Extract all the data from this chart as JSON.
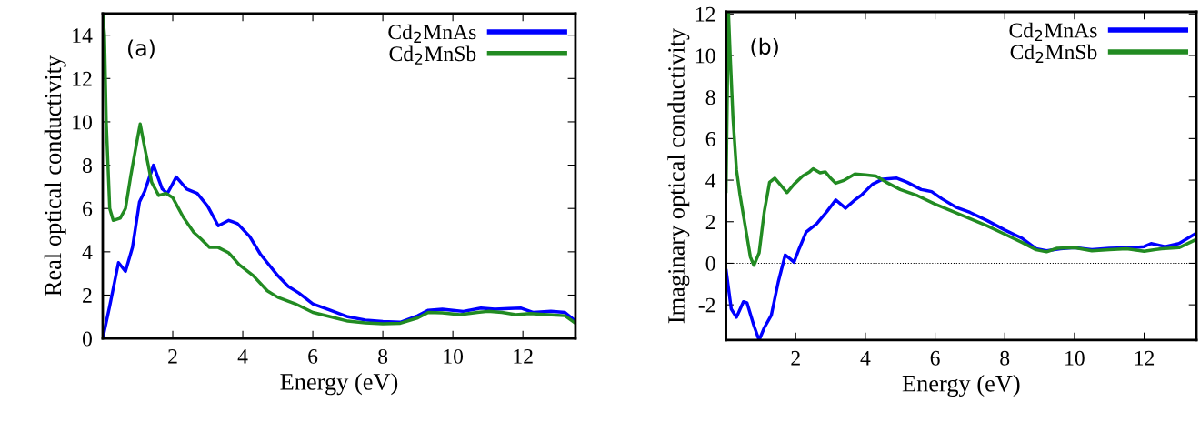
{
  "chart_data": [
    {
      "type": "line",
      "xlabel": "Energy (eV)",
      "ylabel": "Real optical conductivity",
      "annotations": [
        "(a)"
      ],
      "xlim": [
        0,
        13.5
      ],
      "ylim": [
        0,
        15
      ],
      "xticks": [
        2,
        4,
        6,
        8,
        10,
        12
      ],
      "yticks": [
        0,
        2,
        4,
        6,
        8,
        10,
        12,
        14
      ],
      "grid": false,
      "legend": "top right",
      "marker": "none",
      "line_style": "solid",
      "series": [
        {
          "name": "Cd$_{2}$MnAs",
          "color": "#0000ff",
          "x": [
            0,
            0.2,
            0.45,
            0.65,
            0.85,
            1.05,
            1.2,
            1.45,
            1.7,
            1.85,
            2.1,
            2.4,
            2.7,
            3.0,
            3.3,
            3.6,
            3.85,
            4.2,
            4.5,
            5.0,
            5.3,
            5.6,
            6.0,
            6.5,
            7.0,
            7.5,
            8.0,
            8.5,
            9.0,
            9.3,
            9.7,
            10.0,
            10.3,
            10.8,
            11.2,
            11.6,
            11.95,
            12.3,
            12.8,
            13.2,
            13.5
          ],
          "values": [
            0,
            1.5,
            3.5,
            3.1,
            4.2,
            6.3,
            6.8,
            8.0,
            6.9,
            6.7,
            7.45,
            6.9,
            6.7,
            6.1,
            5.2,
            5.45,
            5.3,
            4.7,
            3.9,
            2.9,
            2.4,
            2.1,
            1.6,
            1.3,
            1.0,
            0.85,
            0.78,
            0.75,
            1.05,
            1.3,
            1.35,
            1.3,
            1.25,
            1.4,
            1.35,
            1.38,
            1.4,
            1.2,
            1.25,
            1.2,
            0.8
          ]
        },
        {
          "name": "Cd$_{2}$MnSb",
          "color": "#228b22",
          "x": [
            0,
            0.05,
            0.1,
            0.2,
            0.3,
            0.5,
            0.65,
            0.8,
            1.0,
            1.07,
            1.2,
            1.4,
            1.6,
            1.8,
            2.0,
            2.3,
            2.6,
            2.8,
            3.05,
            3.3,
            3.6,
            3.9,
            4.3,
            4.7,
            5.0,
            5.5,
            6.0,
            6.5,
            7.0,
            7.5,
            8.0,
            8.5,
            9.0,
            9.3,
            9.7,
            10.2,
            10.7,
            11.0,
            11.4,
            11.8,
            12.2,
            12.7,
            13.2,
            13.5
          ],
          "values": [
            15,
            14,
            10,
            6,
            5.45,
            5.55,
            6,
            7.5,
            9.3,
            9.9,
            8.8,
            7.2,
            6.6,
            6.7,
            6.5,
            5.6,
            4.9,
            4.6,
            4.2,
            4.2,
            3.95,
            3.4,
            2.9,
            2.2,
            1.9,
            1.6,
            1.2,
            1.0,
            0.8,
            0.72,
            0.68,
            0.7,
            0.95,
            1.2,
            1.18,
            1.1,
            1.2,
            1.25,
            1.2,
            1.1,
            1.15,
            1.1,
            1.05,
            0.7
          ]
        }
      ]
    },
    {
      "type": "line",
      "xlabel": "Energy (eV)",
      "ylabel": "Imaginary optical conductivity",
      "annotations": [
        "(b)"
      ],
      "xlim": [
        0,
        13.5
      ],
      "ylim": [
        -3.7,
        12.1
      ],
      "xticks": [
        2,
        4,
        6,
        8,
        10,
        12
      ],
      "yticks": [
        -2,
        0,
        2,
        4,
        6,
        8,
        10,
        12
      ],
      "grid": false,
      "legend": "top right",
      "marker": "none",
      "line_style": "solid",
      "ref_lines": [
        {
          "axis": "y",
          "value": 0,
          "label": null,
          "color": "#000000",
          "line_style": "dotted"
        }
      ],
      "series": [
        {
          "name": "Cd$_{2}$MnAs",
          "color": "#0000ff",
          "x": [
            0,
            0.15,
            0.3,
            0.5,
            0.6,
            0.8,
            0.95,
            1.1,
            1.3,
            1.5,
            1.7,
            1.85,
            1.95,
            2.1,
            2.3,
            2.6,
            2.9,
            3.15,
            3.43,
            3.7,
            3.9,
            4.2,
            4.5,
            4.9,
            5.2,
            5.6,
            5.9,
            6.2,
            6.6,
            7.0,
            7.5,
            8.0,
            8.5,
            8.9,
            9.2,
            9.6,
            10.0,
            10.5,
            11.0,
            11.7,
            12.0,
            12.2,
            12.6,
            13.0,
            13.5
          ],
          "values": [
            -0.3,
            -2.2,
            -2.6,
            -1.85,
            -1.9,
            -3.0,
            -3.7,
            -3.1,
            -2.5,
            -0.9,
            0.4,
            0.2,
            0.05,
            0.7,
            1.5,
            1.9,
            2.5,
            3.05,
            2.65,
            3.05,
            3.3,
            3.8,
            4.05,
            4.1,
            3.9,
            3.55,
            3.45,
            3.1,
            2.7,
            2.45,
            2.05,
            1.6,
            1.2,
            0.7,
            0.6,
            0.7,
            0.75,
            0.65,
            0.72,
            0.75,
            0.8,
            0.95,
            0.8,
            0.95,
            1.45
          ]
        },
        {
          "name": "Cd$_{2}$MnSb",
          "color": "#228b22",
          "x": [
            0,
            0.07,
            0.12,
            0.2,
            0.3,
            0.4,
            0.55,
            0.7,
            0.8,
            0.95,
            1.1,
            1.25,
            1.4,
            1.6,
            1.75,
            1.95,
            2.2,
            2.4,
            2.5,
            2.7,
            2.85,
            3.0,
            3.15,
            3.4,
            3.7,
            4.0,
            4.3,
            4.6,
            5.0,
            5.5,
            6.0,
            6.5,
            7.0,
            7.5,
            8.0,
            8.5,
            8.9,
            9.2,
            9.5,
            10.0,
            10.5,
            11.0,
            11.5,
            12.0,
            12.5,
            13.0,
            13.5
          ],
          "values": [
            3.4,
            12.1,
            10,
            7,
            4.5,
            3.3,
            1.8,
            0.3,
            -0.1,
            0.5,
            2.5,
            3.9,
            4.1,
            3.7,
            3.4,
            3.8,
            4.2,
            4.4,
            4.55,
            4.35,
            4.4,
            4.1,
            3.85,
            4.0,
            4.3,
            4.25,
            4.2,
            3.9,
            3.55,
            3.25,
            2.85,
            2.5,
            2.15,
            1.8,
            1.4,
            1.0,
            0.65,
            0.55,
            0.72,
            0.75,
            0.6,
            0.65,
            0.7,
            0.58,
            0.7,
            0.75,
            1.15
          ]
        }
      ]
    }
  ]
}
